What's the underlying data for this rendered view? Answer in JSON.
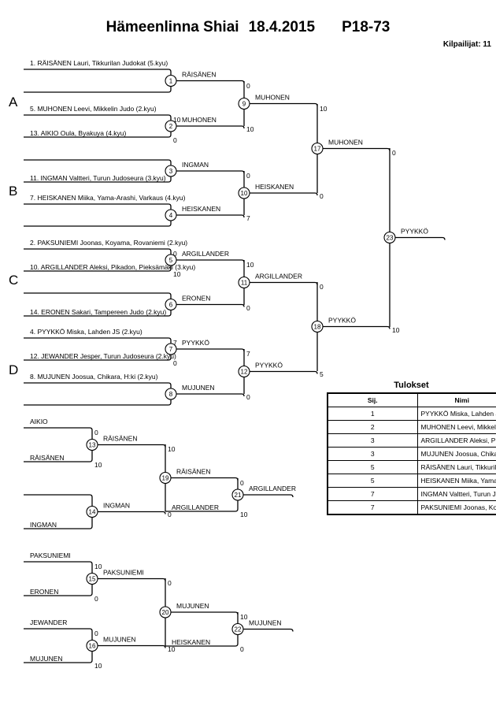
{
  "header": {
    "event": "Hämeenlinna Shiai",
    "date": "18.4.2015",
    "category": "P18-73",
    "competitors": "Kilpailijat: 11"
  },
  "pools": [
    "A",
    "B",
    "C",
    "D"
  ],
  "matches": [
    {
      "no": "1",
      "top": "1. RÄISÄNEN Lauri, Tikkurilan Judokat (5.kyu)",
      "bottom": "",
      "top_score": "",
      "bottom_score": "",
      "winner": "RÄISÄNEN"
    },
    {
      "no": "2",
      "top": "5. MUHONEN Leevi, Mikkelin Judo (2.kyu)",
      "bottom": "13. AIKIO Oula, Byakuya (4.kyu)",
      "top_score": "10",
      "bottom_score": "0",
      "winner": "MUHONEN"
    },
    {
      "no": "3",
      "top": "",
      "bottom": "11. INGMAN Valtteri, Turun Judoseura (3.kyu)",
      "top_score": "",
      "bottom_score": "",
      "winner": "INGMAN"
    },
    {
      "no": "4",
      "top": "7. HEISKANEN Miika, Yama-Arashi, Varkaus (4.kyu)",
      "bottom": "",
      "top_score": "",
      "bottom_score": "",
      "winner": "HEISKANEN"
    },
    {
      "no": "5",
      "top": "2. PAKSUNIEMI Joonas, Koyama, Rovaniemi (2.kyu)",
      "bottom": "10. ARGILLANDER Aleksi, Pikadon, Pieksämäki (3.kyu)",
      "top_score": "0",
      "bottom_score": "10",
      "winner": "ARGILLANDER"
    },
    {
      "no": "6",
      "top": "",
      "bottom": "14. ERONEN Sakari, Tampereen Judo (2.kyu)",
      "top_score": "",
      "bottom_score": "",
      "winner": "ERONEN"
    },
    {
      "no": "7",
      "top": "4. PYYKKÖ Miska, Lahden JS (2.kyu)",
      "bottom": "12. JEWANDER Jesper, Turun Judoseura (2.kyu)",
      "top_score": "7",
      "bottom_score": "0",
      "winner": "PYYKKÖ"
    },
    {
      "no": "8",
      "top": "8. MUJUNEN Joosua, Chikara, H:ki (2.kyu)",
      "bottom": "",
      "top_score": "",
      "bottom_score": "",
      "winner": "MUJUNEN"
    },
    {
      "no": "9",
      "top": "",
      "bottom": "",
      "top_score": "0",
      "bottom_score": "10",
      "winner": "MUHONEN"
    },
    {
      "no": "10",
      "top": "",
      "bottom": "",
      "top_score": "0",
      "bottom_score": "7",
      "winner": "HEISKANEN"
    },
    {
      "no": "11",
      "top": "",
      "bottom": "",
      "top_score": "10",
      "bottom_score": "0",
      "winner": "ARGILLANDER"
    },
    {
      "no": "12",
      "top": "",
      "bottom": "",
      "top_score": "7",
      "bottom_score": "0",
      "winner": "PYYKKÖ"
    },
    {
      "no": "17",
      "top": "",
      "bottom": "",
      "top_score": "10",
      "bottom_score": "0",
      "winner": "MUHONEN"
    },
    {
      "no": "18",
      "top": "",
      "bottom": "",
      "top_score": "0",
      "bottom_score": "5",
      "winner": "PYYKKÖ"
    },
    {
      "no": "23",
      "top": "",
      "bottom": "",
      "top_score": "0",
      "bottom_score": "10",
      "winner": "PYYKKÖ"
    },
    {
      "no": "13",
      "top": "AIKIO",
      "bottom": "RÄISÄNEN",
      "top_score": "0",
      "bottom_score": "10",
      "winner": "RÄISÄNEN"
    },
    {
      "no": "14",
      "top": "",
      "bottom": "INGMAN",
      "top_score": "",
      "bottom_score": "",
      "winner": "INGMAN"
    },
    {
      "no": "19",
      "top": "",
      "bottom": "",
      "top_score": "10",
      "bottom_score": "0",
      "winner": "RÄISÄNEN"
    },
    {
      "no": "21",
      "top": "",
      "bottom": "ARGILLANDER",
      "top_score": "0",
      "bottom_score": "10",
      "winner": "ARGILLANDER"
    },
    {
      "no": "15",
      "top": "PAKSUNIEMI",
      "bottom": "ERONEN",
      "top_score": "10",
      "bottom_score": "0",
      "winner": "PAKSUNIEMI"
    },
    {
      "no": "16",
      "top": "JEWANDER",
      "bottom": "MUJUNEN",
      "top_score": "0",
      "bottom_score": "10",
      "winner": "MUJUNEN"
    },
    {
      "no": "20",
      "top": "",
      "bottom": "",
      "top_score": "0",
      "bottom_score": "10",
      "winner": "MUJUNEN"
    },
    {
      "no": "22",
      "top": "",
      "bottom": "HEISKANEN",
      "top_score": "10",
      "bottom_score": "0",
      "winner": "MUJUNEN"
    }
  ],
  "results": {
    "title": "Tulokset",
    "col_rank": "Sij.",
    "col_name": "Nimi",
    "rows": [
      {
        "rank": "1",
        "name": "PYYKKÖ Miska, Lahden JS"
      },
      {
        "rank": "2",
        "name": "MUHONEN Leevi, Mikkelin Judo"
      },
      {
        "rank": "3",
        "name": "ARGILLANDER Aleksi, Pikadon, Pieksämäki"
      },
      {
        "rank": "3",
        "name": "MUJUNEN Joosua, Chikara, H:ki"
      },
      {
        "rank": "5",
        "name": "RÄISÄNEN Lauri, Tikkurilan Judokat"
      },
      {
        "rank": "5",
        "name": "HEISKANEN Miika, Yama-Arashi, Varkaus"
      },
      {
        "rank": "7",
        "name": "INGMAN Valtteri, Turun Judoseura"
      },
      {
        "rank": "7",
        "name": "PAKSUNIEMI Joonas, Koyama, Rovaniemi"
      }
    ]
  }
}
